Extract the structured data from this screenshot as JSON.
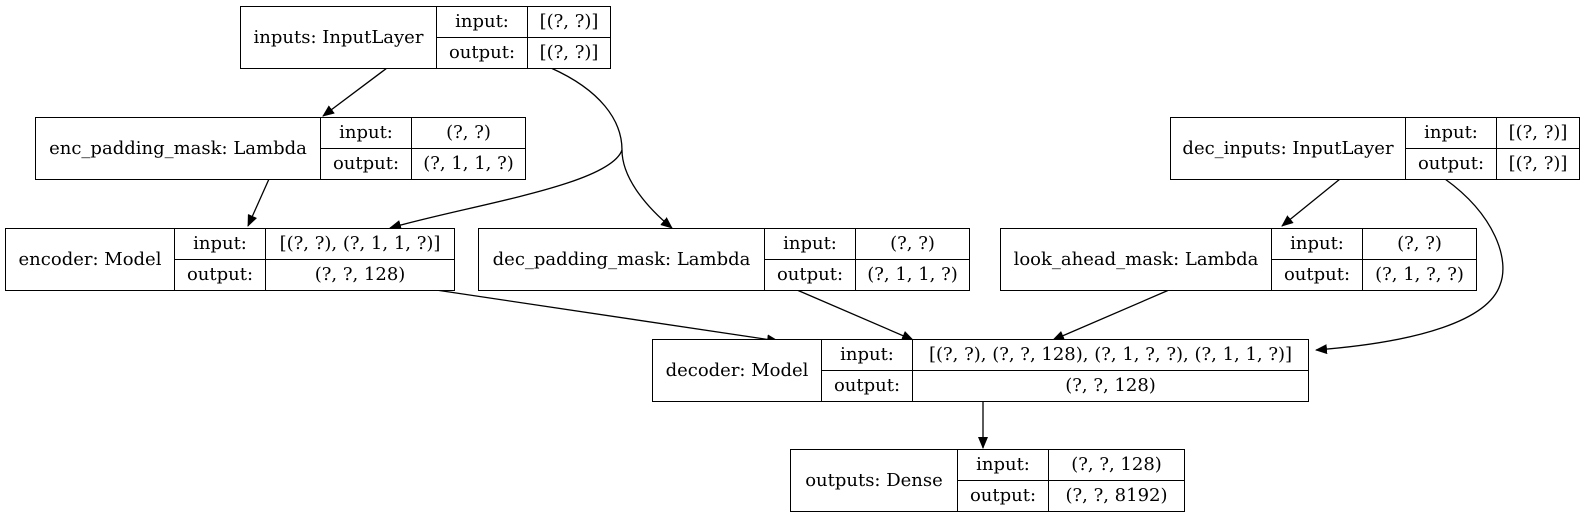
{
  "nodes": {
    "inputs": {
      "name": "inputs: InputLayer",
      "input_label": "input:",
      "input": "[(?, ?)]",
      "output_label": "output:",
      "output": "[(?, ?)]"
    },
    "enc_padding_mask": {
      "name": "enc_padding_mask: Lambda",
      "input_label": "input:",
      "input": "(?, ?)",
      "output_label": "output:",
      "output": "(?, 1, 1, ?)"
    },
    "dec_inputs": {
      "name": "dec_inputs: InputLayer",
      "input_label": "input:",
      "input": "[(?, ?)]",
      "output_label": "output:",
      "output": "[(?, ?)]"
    },
    "encoder": {
      "name": "encoder: Model",
      "input_label": "input:",
      "input": "[(?, ?), (?, 1, 1, ?)]",
      "output_label": "output:",
      "output": "(?, ?, 128)"
    },
    "dec_padding_mask": {
      "name": "dec_padding_mask: Lambda",
      "input_label": "input:",
      "input": "(?, ?)",
      "output_label": "output:",
      "output": "(?, 1, 1, ?)"
    },
    "look_ahead_mask": {
      "name": "look_ahead_mask: Lambda",
      "input_label": "input:",
      "input": "(?, ?)",
      "output_label": "output:",
      "output": "(?, 1, ?, ?)"
    },
    "decoder": {
      "name": "decoder: Model",
      "input_label": "input:",
      "input": "[(?, ?), (?, ?, 128), (?, 1, ?, ?), (?, 1, 1, ?)]",
      "output_label": "output:",
      "output": "(?, ?, 128)"
    },
    "outputs": {
      "name": "outputs: Dense",
      "input_label": "input:",
      "input": "(?, ?, 128)",
      "output_label": "output:",
      "output": "(?, ?, 8192)"
    }
  },
  "edges": [
    {
      "from": "inputs",
      "to": "enc_padding_mask"
    },
    {
      "from": "inputs",
      "to": "encoder"
    },
    {
      "from": "inputs",
      "to": "dec_padding_mask"
    },
    {
      "from": "enc_padding_mask",
      "to": "encoder"
    },
    {
      "from": "dec_inputs",
      "to": "look_ahead_mask"
    },
    {
      "from": "dec_inputs",
      "to": "decoder"
    },
    {
      "from": "encoder",
      "to": "decoder"
    },
    {
      "from": "dec_padding_mask",
      "to": "decoder"
    },
    {
      "from": "look_ahead_mask",
      "to": "decoder"
    },
    {
      "from": "decoder",
      "to": "outputs"
    }
  ]
}
